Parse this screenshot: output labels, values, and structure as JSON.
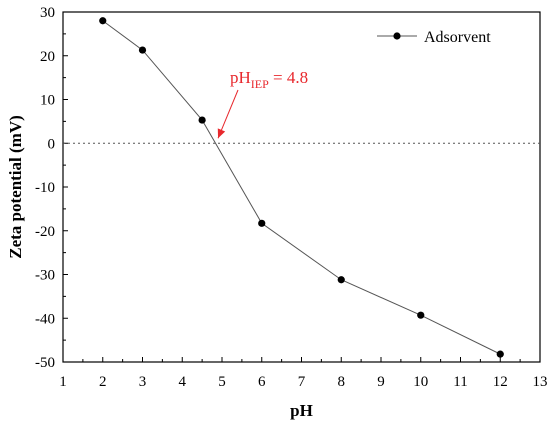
{
  "chart_data": {
    "type": "line",
    "xlabel": "pH",
    "ylabel": "Zeta potential (mV)",
    "xlim": [
      1,
      13
    ],
    "ylim": [
      -50,
      30
    ],
    "xticks": [
      1,
      2,
      3,
      4,
      5,
      6,
      7,
      8,
      9,
      10,
      11,
      12,
      13
    ],
    "yticks": [
      -50,
      -40,
      -30,
      -20,
      -10,
      0,
      10,
      20,
      30
    ],
    "xtick_labels": [
      "1",
      "2",
      "3",
      "4",
      "5",
      "6",
      "7",
      "8",
      "9",
      "10",
      "11",
      "12",
      "13"
    ],
    "ytick_labels": [
      "-50",
      "-40",
      "-30",
      "-20",
      "-10",
      "0",
      "10",
      "20",
      "30"
    ],
    "series": [
      {
        "name": "Adsorvent",
        "x": [
          2,
          3,
          4.5,
          6,
          8,
          10,
          12
        ],
        "y": [
          28,
          21.3,
          5.3,
          -18.3,
          -31.2,
          -39.3,
          -48.2
        ],
        "color": "#000000",
        "line_color": "#555555",
        "marker": "circle"
      }
    ],
    "reference_line": {
      "y": 0,
      "style": "dotted"
    },
    "annotation": {
      "prefix": "pH",
      "subscript": "IEP",
      "suffix": " = 4.8",
      "x": 4.8,
      "y": 0,
      "color": "#e8282d"
    },
    "legend": {
      "position": "top-right"
    },
    "grid": false
  }
}
